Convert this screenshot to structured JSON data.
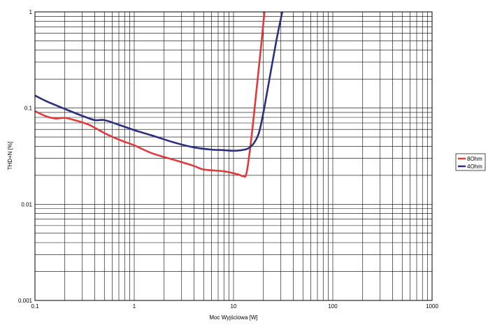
{
  "chart_data": {
    "type": "line",
    "title": "",
    "xlabel": "Moc Wyjściowa [W]",
    "ylabel": "THD+N [%]",
    "x_scale": "log",
    "y_scale": "log",
    "xlim": [
      0.1,
      1000
    ],
    "ylim": [
      0.001,
      1
    ],
    "grid": true,
    "legend_position": "right",
    "x_tick_labels": [
      "0.1",
      "1",
      "10",
      "100",
      "1000"
    ],
    "y_tick_labels": [
      "0.001",
      "0.01",
      "0.1",
      "1"
    ],
    "series": [
      {
        "name": "8Ohm",
        "color": "#e03a3e",
        "x": [
          0.1,
          0.13,
          0.16,
          0.2,
          0.25,
          0.35,
          0.5,
          0.7,
          1.0,
          1.5,
          2.5,
          4.0,
          5.0,
          8.0,
          11.0,
          12.5,
          13.5,
          15.0,
          17.0,
          19.0,
          20.5
        ],
        "y": [
          0.093,
          0.082,
          0.078,
          0.079,
          0.075,
          0.067,
          0.055,
          0.047,
          0.041,
          0.034,
          0.029,
          0.025,
          0.023,
          0.022,
          0.0205,
          0.0196,
          0.021,
          0.045,
          0.15,
          0.45,
          1.0
        ]
      },
      {
        "name": "4Ohm",
        "color": "#2b2f7e",
        "x": [
          0.1,
          0.13,
          0.2,
          0.3,
          0.4,
          0.5,
          0.7,
          1.0,
          1.5,
          2.5,
          4.0,
          6.0,
          8.0,
          10.0,
          12.0,
          14.0,
          16.0,
          18.0,
          20.0,
          23.0,
          27.0,
          31.0
        ],
        "y": [
          0.135,
          0.118,
          0.098,
          0.083,
          0.075,
          0.075,
          0.067,
          0.059,
          0.052,
          0.044,
          0.039,
          0.037,
          0.0365,
          0.036,
          0.0365,
          0.038,
          0.043,
          0.055,
          0.09,
          0.2,
          0.5,
          1.0
        ]
      }
    ]
  }
}
